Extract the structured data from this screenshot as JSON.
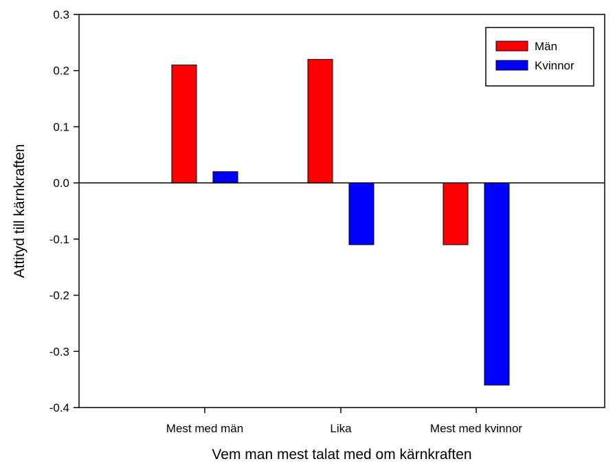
{
  "chart_data": {
    "type": "bar",
    "title": "",
    "xlabel": "Vem man mest talat med om kärnkraften",
    "ylabel": "Attityd till kärnkraften",
    "categories": [
      "Mest med män",
      "Lika",
      "Mest med kvinnor"
    ],
    "series": [
      {
        "name": "Män",
        "color": "#ff0000",
        "values": [
          0.21,
          0.22,
          -0.11
        ]
      },
      {
        "name": "Kvinnor",
        "color": "#0000ff",
        "values": [
          0.02,
          -0.11,
          -0.36
        ]
      }
    ],
    "ylim": [
      -0.4,
      0.3
    ],
    "yticks": [
      "-0.4",
      "-0.3",
      "-0.2",
      "-0.1",
      "0.0",
      "0.1",
      "0.2",
      "0.3"
    ],
    "grid": false,
    "legend_position": "top-right"
  }
}
